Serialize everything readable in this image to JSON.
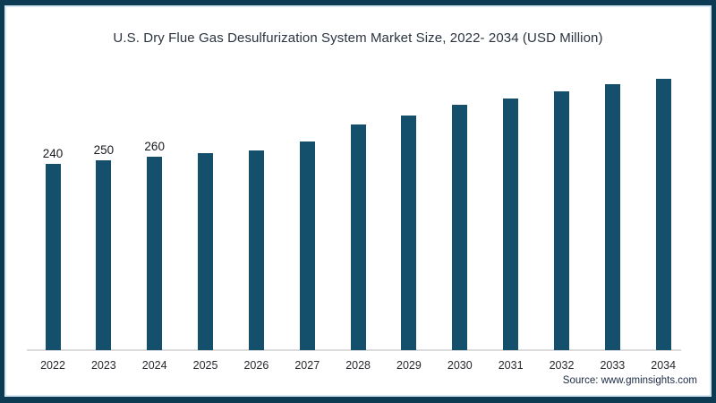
{
  "page": {
    "title": "U.S. Dry Flue Gas Desulfurization System Market Size, 2022- 2034 (USD Million)",
    "source": "Source: www.gminsights.com"
  },
  "chart_data": {
    "type": "bar",
    "title": "U.S. Dry Flue Gas Desulfurization System Market Size, 2022- 2034 (USD Million)",
    "categories": [
      "2022",
      "2023",
      "2024",
      "2025",
      "2026",
      "2027",
      "2028",
      "2029",
      "2030",
      "2031",
      "2032",
      "2033",
      "2034"
    ],
    "values": [
      240,
      250,
      260,
      270,
      280,
      305,
      355,
      380,
      410,
      430,
      450,
      470,
      485
    ],
    "data_labels": [
      "240",
      "250",
      "260",
      "",
      "",
      "",
      "",
      "",
      "",
      "",
      "",
      "",
      ""
    ],
    "xlabel": "",
    "ylabel": "",
    "legend_position": "none",
    "grid": false,
    "y_axis_visible": false,
    "axis_note": "only first three bars carry value labels; remaining values estimated from bar heights on a truncated (non-zero-based) scale",
    "bar_color": "#14506b",
    "frame_color": "#0e3b54",
    "axis_line_color": "#dbdbdb",
    "source_text_color": "#1b2a44"
  }
}
